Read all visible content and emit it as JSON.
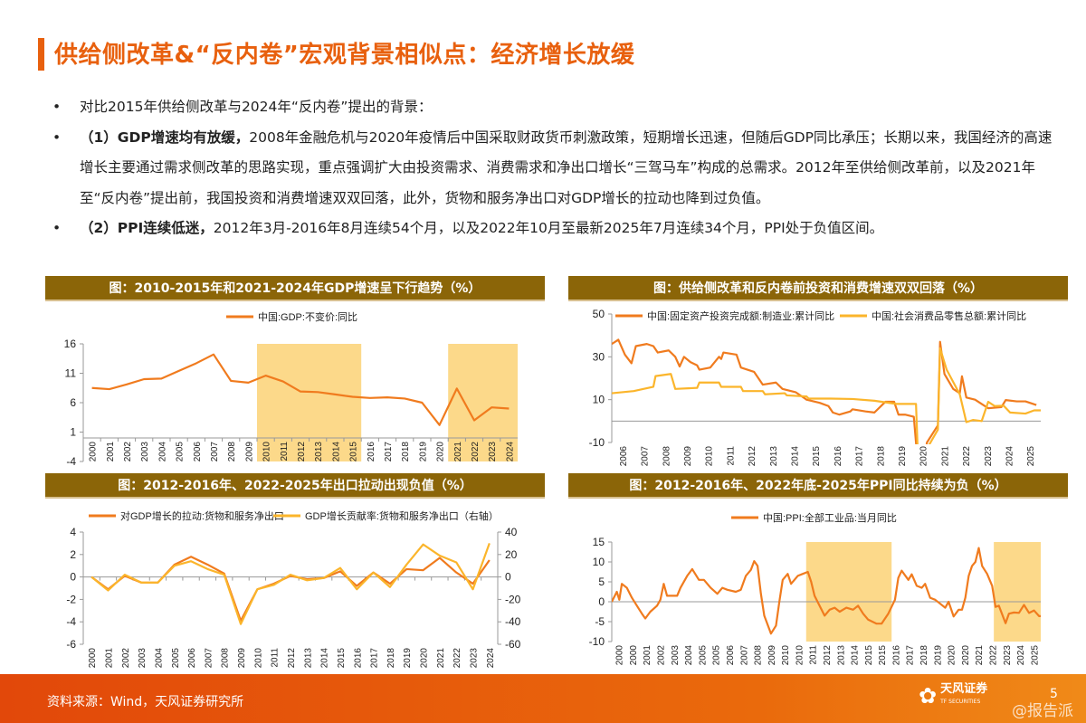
{
  "title": "供给侧改革&“反内卷”宏观背景相似点：经济增长放缓",
  "bullets": [
    {
      "bold": "",
      "text": "对比2015年供给侧改革与2024年“反内卷”提出的背景："
    },
    {
      "bold": "（1）GDP增速均有放缓，",
      "text": "2008年金融危机与2020年疫情后中国采取财政货币刺激政策，短期增长迅速，但随后GDP同比承压；长期以来，我国经济的高速增长主要通过需求侧改革的思路实现，重点强调扩大由投资需求、消费需求和净出口增长“三驾马车”构成的总需求。2012年至供给侧改革前，以及2021年至“反内卷”提出前，我国投资和消费增速双双回落，此外，货物和服务净出口对GDP增长的拉动也降到过负值。"
    },
    {
      "bold": "（2）PPI连续低迷，",
      "text": "2012年3月-2016年8月连续54个月，以及2022年10月至最新2025年7月连续34个月，PPI处于负值区间。"
    }
  ],
  "colors": {
    "accent": "#e8600e",
    "header": "#8b6508",
    "line1": "#f07b1e",
    "line2": "#fbb52b",
    "shade": "#fcd98a"
  },
  "chart_data": [
    {
      "type": "line",
      "title": "图：2010-2015年和2021-2024年GDP增速呈下行趋势（%）",
      "categories": [
        "2000",
        "2001",
        "2002",
        "2003",
        "2004",
        "2005",
        "2006",
        "2007",
        "2008",
        "2009",
        "2010",
        "2011",
        "2012",
        "2013",
        "2014",
        "2015",
        "2016",
        "2017",
        "2018",
        "2019",
        "2020",
        "2021",
        "2022",
        "2023",
        "2024"
      ],
      "series": [
        {
          "name": "中国:GDP:不变价:同比",
          "values": [
            8.5,
            8.3,
            9.1,
            10.0,
            10.1,
            11.4,
            12.7,
            14.2,
            9.7,
            9.4,
            10.6,
            9.6,
            7.9,
            7.8,
            7.4,
            7.0,
            6.8,
            6.9,
            6.7,
            6.0,
            2.2,
            8.4,
            3.0,
            5.2,
            5.0
          ]
        }
      ],
      "ylim": [
        -4,
        16
      ],
      "yticks": [
        -4,
        1,
        6,
        11,
        16
      ],
      "shaded": [
        [
          "2010",
          "2015"
        ],
        [
          "2021",
          "2024"
        ]
      ],
      "legend": "top-center"
    },
    {
      "type": "line",
      "title": "图：供给侧改革和反内卷前投资和消费增速双双回落（%）",
      "xticks": [
        "2006",
        "2007",
        "2008",
        "2009",
        "2010",
        "2011",
        "2012",
        "2013",
        "2014",
        "2015",
        "2016",
        "2017",
        "2018",
        "2019",
        "2020",
        "2021",
        "2022",
        "2023",
        "2024",
        "2025"
      ],
      "xlim": [
        2006,
        2025.6
      ],
      "series": [
        {
          "name": "中国:固定资产投资完成额:制造业:累计同比",
          "points": [
            [
              2006.0,
              36
            ],
            [
              2006.3,
              38
            ],
            [
              2006.6,
              31
            ],
            [
              2006.9,
              27
            ],
            [
              2007.1,
              35
            ],
            [
              2007.6,
              36
            ],
            [
              2007.9,
              35
            ],
            [
              2008.1,
              32
            ],
            [
              2008.6,
              33
            ],
            [
              2008.9,
              30
            ],
            [
              2009.1,
              25.5
            ],
            [
              2009.3,
              30
            ],
            [
              2009.6,
              27.5
            ],
            [
              2009.9,
              26
            ],
            [
              2010.0,
              24
            ],
            [
              2010.5,
              25
            ],
            [
              2010.9,
              30
            ],
            [
              2011.0,
              29
            ],
            [
              2011.1,
              32
            ],
            [
              2011.7,
              31
            ],
            [
              2011.9,
              25
            ],
            [
              2012.5,
              23
            ],
            [
              2012.9,
              17
            ],
            [
              2013.5,
              18
            ],
            [
              2013.8,
              15
            ],
            [
              2014.4,
              13.5
            ],
            [
              2014.9,
              10
            ],
            [
              2015.5,
              8.5
            ],
            [
              2015.9,
              7
            ],
            [
              2016.1,
              4
            ],
            [
              2016.4,
              3
            ],
            [
              2016.9,
              4.5
            ],
            [
              2017.0,
              5.5
            ],
            [
              2017.6,
              4.5
            ],
            [
              2018.0,
              4
            ],
            [
              2018.5,
              9
            ],
            [
              2018.9,
              9
            ],
            [
              2019.1,
              3
            ],
            [
              2019.4,
              3
            ],
            [
              2019.8,
              2
            ],
            [
              2019.9,
              -10
            ],
            [
              2020.1,
              -32
            ],
            [
              2020.4,
              -10
            ],
            [
              2020.9,
              -2
            ],
            [
              2021.0,
              37
            ],
            [
              2021.2,
              22
            ],
            [
              2021.6,
              15
            ],
            [
              2021.9,
              13
            ],
            [
              2022.0,
              20.9
            ],
            [
              2022.2,
              11
            ],
            [
              2022.6,
              10
            ],
            [
              2022.9,
              8
            ],
            [
              2023.2,
              6
            ],
            [
              2023.8,
              6.5
            ],
            [
              2024.0,
              9.8
            ],
            [
              2024.5,
              9.2
            ],
            [
              2024.9,
              9.2
            ],
            [
              2025.4,
              7.5
            ]
          ]
        },
        {
          "name": "中国:社会消费品零售总额:累计同比",
          "points": [
            [
              2006.0,
              13
            ],
            [
              2007.0,
              14
            ],
            [
              2007.9,
              16
            ],
            [
              2008.0,
              21
            ],
            [
              2008.7,
              22
            ],
            [
              2008.9,
              15
            ],
            [
              2009.9,
              15.5
            ],
            [
              2010.0,
              18
            ],
            [
              2010.9,
              18
            ],
            [
              2011.0,
              16
            ],
            [
              2011.9,
              16
            ],
            [
              2012.0,
              14
            ],
            [
              2012.9,
              14
            ],
            [
              2013.0,
              12.5
            ],
            [
              2013.9,
              13
            ],
            [
              2014.0,
              12
            ],
            [
              2014.9,
              11.5
            ],
            [
              2015.0,
              10.5
            ],
            [
              2016.0,
              10.5
            ],
            [
              2017.0,
              10.3
            ],
            [
              2018.0,
              9.5
            ],
            [
              2019.0,
              8
            ],
            [
              2019.9,
              8
            ],
            [
              2020.0,
              -20
            ],
            [
              2020.9,
              -4
            ],
            [
              2021.0,
              34
            ],
            [
              2021.3,
              24
            ],
            [
              2021.9,
              12.5
            ],
            [
              2022.2,
              -0.5
            ],
            [
              2022.5,
              0.5
            ],
            [
              2022.9,
              0
            ],
            [
              2023.2,
              9
            ],
            [
              2023.5,
              7
            ],
            [
              2023.9,
              7.2
            ],
            [
              2024.2,
              4
            ],
            [
              2024.9,
              3.5
            ],
            [
              2025.3,
              5
            ],
            [
              2025.6,
              5
            ]
          ]
        }
      ],
      "ylim": [
        -10,
        50
      ],
      "yticks": [
        -10,
        10,
        30,
        50
      ],
      "legend": "top"
    },
    {
      "type": "line",
      "title": "图：2012-2016年、2022-2025年出口拉动出现负值（%）",
      "categories": [
        "2000",
        "2001",
        "2002",
        "2003",
        "2004",
        "2005",
        "2006",
        "2007",
        "2008",
        "2009",
        "2010",
        "2011",
        "2012",
        "2013",
        "2014",
        "2015",
        "2016",
        "2017",
        "2018",
        "2019",
        "2020",
        "2021",
        "2022",
        "2023",
        "2024"
      ],
      "series": [
        {
          "name": "对GDP增长的拉动:货物和服务净出口",
          "axis": "left",
          "values": [
            0,
            -1.1,
            0.1,
            -0.5,
            -0.5,
            1.1,
            1.8,
            1.1,
            0.3,
            -3.9,
            -1.1,
            -0.6,
            0.1,
            -0.2,
            -0.1,
            0.5,
            -0.8,
            0.4,
            -0.6,
            0.7,
            0.6,
            1.7,
            0.4,
            -0.6,
            1.5
          ]
        },
        {
          "name": "GDP增长贡献率:货物和服务净出口（右轴）",
          "axis": "right",
          "values": [
            0,
            -12,
            2,
            -5,
            -5,
            10,
            14,
            7,
            2,
            -42,
            -11,
            -7,
            2,
            -3,
            -1,
            8,
            -11,
            4,
            -9,
            11,
            29,
            19,
            13,
            -11,
            30
          ]
        }
      ],
      "ylim": [
        -6,
        4
      ],
      "yticks": [
        -6,
        -4,
        -2,
        0,
        2,
        4
      ],
      "y2lim": [
        -60,
        40
      ],
      "y2ticks": [
        -60,
        -40,
        -20,
        0,
        20,
        40
      ],
      "legend": "top"
    },
    {
      "type": "line",
      "title": "图：2012-2016年、2022年底-2025年PPI同比持续为负（%）",
      "xticks": [
        "2000",
        "2000",
        "2001",
        "2002",
        "2003",
        "2004",
        "2005",
        "2005",
        "2006",
        "2007",
        "2008",
        "2009",
        "2010",
        "2010",
        "2011",
        "2012",
        "2013",
        "2014",
        "2015",
        "2015",
        "2016",
        "2017",
        "2018",
        "2019",
        "2020",
        "2020",
        "2021",
        "2022",
        "2023",
        "2024",
        "2025"
      ],
      "xlim": [
        2000,
        2025.6
      ],
      "series": [
        {
          "name": "中国:PPI:全部工业品:当月同比",
          "points": [
            [
              2000,
              0
            ],
            [
              2000.3,
              2.5
            ],
            [
              2000.45,
              0.5
            ],
            [
              2000.6,
              4.5
            ],
            [
              2000.9,
              3.5
            ],
            [
              2001.2,
              1
            ],
            [
              2001.5,
              -1
            ],
            [
              2001.8,
              -3
            ],
            [
              2002.0,
              -4.2
            ],
            [
              2002.3,
              -2.5
            ],
            [
              2002.7,
              -1
            ],
            [
              2002.9,
              0.5
            ],
            [
              2003.1,
              4.5
            ],
            [
              2003.3,
              1.5
            ],
            [
              2003.9,
              1.5
            ],
            [
              2004.1,
              3.5
            ],
            [
              2004.5,
              6.5
            ],
            [
              2004.8,
              8.2
            ],
            [
              2005.2,
              5.5
            ],
            [
              2005.5,
              5.5
            ],
            [
              2005.9,
              3.5
            ],
            [
              2006.3,
              2
            ],
            [
              2006.6,
              3.5
            ],
            [
              2006.9,
              3
            ],
            [
              2007.4,
              2.5
            ],
            [
              2007.7,
              3
            ],
            [
              2008.0,
              6.5
            ],
            [
              2008.3,
              8
            ],
            [
              2008.5,
              10.2
            ],
            [
              2008.7,
              9
            ],
            [
              2008.9,
              2
            ],
            [
              2009.1,
              -3.5
            ],
            [
              2009.5,
              -8
            ],
            [
              2009.8,
              -6
            ],
            [
              2010.0,
              0
            ],
            [
              2010.2,
              5.5
            ],
            [
              2010.5,
              7
            ],
            [
              2010.7,
              4.5
            ],
            [
              2011.1,
              6.5
            ],
            [
              2011.4,
              7
            ],
            [
              2011.7,
              7.5
            ],
            [
              2011.9,
              5
            ],
            [
              2012.1,
              1.5
            ],
            [
              2012.4,
              -1
            ],
            [
              2012.7,
              -3.5
            ],
            [
              2013.0,
              -2
            ],
            [
              2013.3,
              -1.5
            ],
            [
              2013.6,
              -2.5
            ],
            [
              2014.0,
              -1.5
            ],
            [
              2014.4,
              -2
            ],
            [
              2014.7,
              -1
            ],
            [
              2015.0,
              -3
            ],
            [
              2015.3,
              -4.5
            ],
            [
              2015.8,
              -5.5
            ],
            [
              2016.1,
              -5.5
            ],
            [
              2016.5,
              -3
            ],
            [
              2016.9,
              0.5
            ],
            [
              2017.1,
              6
            ],
            [
              2017.3,
              7.8
            ],
            [
              2017.7,
              5.5
            ],
            [
              2017.9,
              6.9
            ],
            [
              2018.2,
              4
            ],
            [
              2018.5,
              3.5
            ],
            [
              2018.7,
              4.5
            ],
            [
              2019.0,
              1
            ],
            [
              2019.3,
              0.5
            ],
            [
              2019.6,
              -0.5
            ],
            [
              2019.9,
              -1.5
            ],
            [
              2020.1,
              0
            ],
            [
              2020.4,
              -3.7
            ],
            [
              2020.7,
              -2
            ],
            [
              2020.9,
              -2
            ],
            [
              2021.1,
              1
            ],
            [
              2021.3,
              6.5
            ],
            [
              2021.5,
              9
            ],
            [
              2021.7,
              10
            ],
            [
              2021.9,
              13.5
            ],
            [
              2022.1,
              9
            ],
            [
              2022.4,
              7
            ],
            [
              2022.7,
              4
            ],
            [
              2022.9,
              -1.3
            ],
            [
              2023.1,
              -1
            ],
            [
              2023.5,
              -5.4
            ],
            [
              2023.7,
              -3
            ],
            [
              2024.0,
              -2.7
            ],
            [
              2024.3,
              -2.8
            ],
            [
              2024.6,
              -0.8
            ],
            [
              2024.9,
              -2.8
            ],
            [
              2025.2,
              -2.2
            ],
            [
              2025.5,
              -3.6
            ],
            [
              2025.6,
              -3.6
            ]
          ]
        }
      ],
      "ylim": [
        -10,
        15
      ],
      "yticks": [
        -10,
        -5,
        0,
        5,
        10,
        15
      ],
      "shaded": [
        [
          2011.6,
          2016.7
        ],
        [
          2022.8,
          2025.6
        ]
      ],
      "legend": "top-center"
    }
  ],
  "footer": {
    "source": "资料来源：Wind，天风证券研究所",
    "logo_text": "天风证券",
    "logo_sub": "TF SECURITIES",
    "page": "5",
    "watermark": "@报告派"
  }
}
